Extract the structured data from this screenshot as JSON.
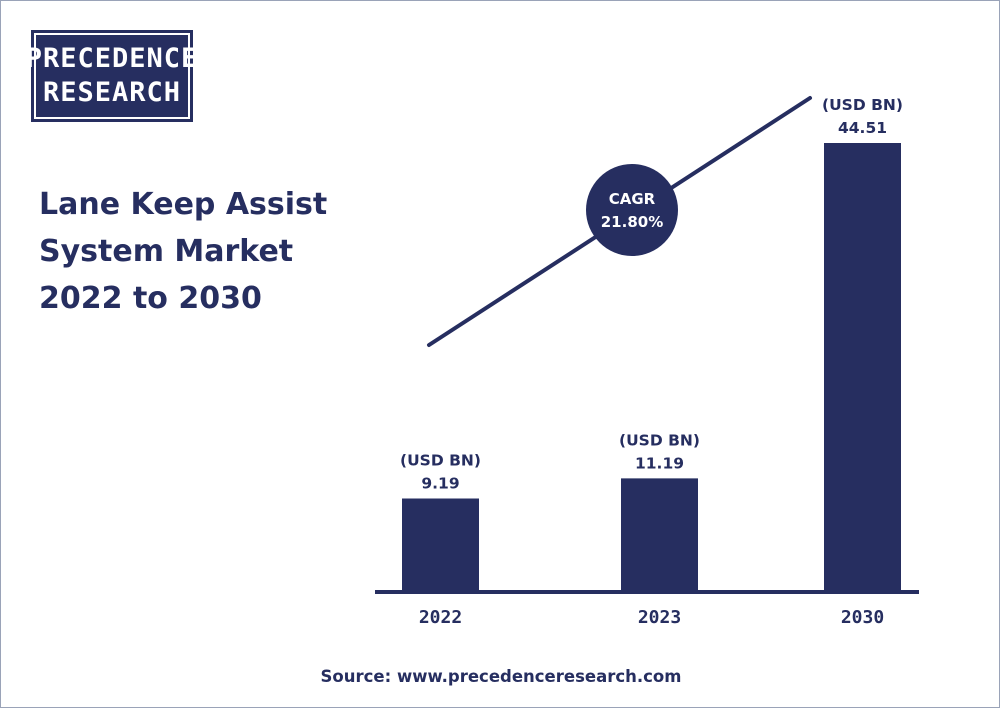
{
  "logo": {
    "line1": "PRECEDENCE",
    "line2": "RESEARCH"
  },
  "title_lines": [
    "Lane Keep Assist",
    "System Market",
    "2022 to 2030"
  ],
  "source": "Source: www.precedenceresearch.com",
  "colors": {
    "bar": "#262e60",
    "text": "#262e60",
    "background": "#ffffff"
  },
  "chart_data": {
    "type": "bar",
    "categories": [
      "2022",
      "2023",
      "2030"
    ],
    "values": [
      9.19,
      11.19,
      44.51
    ],
    "value_labels": [
      "9.19",
      "11.19",
      "44.51"
    ],
    "unit_label": "(USD BN)",
    "ylim": [
      0,
      44.51
    ],
    "grid": false,
    "annotation": {
      "line1": "CAGR",
      "line2": "21.80%"
    },
    "trend_line": true
  }
}
